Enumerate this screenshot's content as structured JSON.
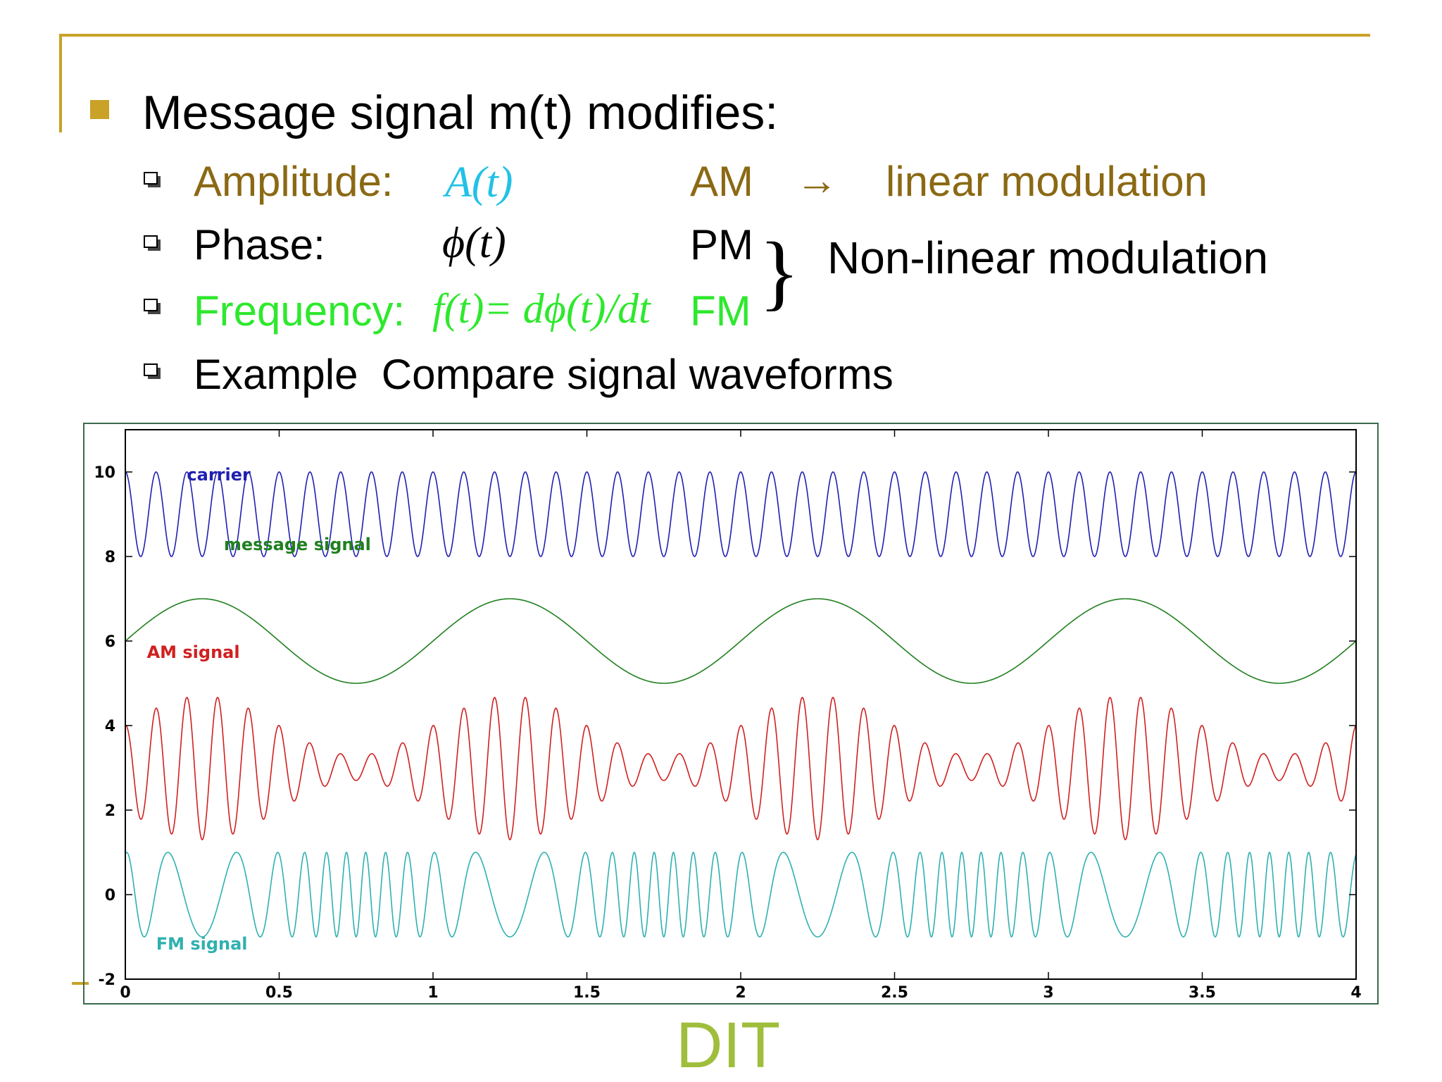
{
  "slide": {
    "heading": "Message signal m(t) modifies:",
    "bullets": [
      {
        "label": "Amplitude:",
        "math": "A(t)",
        "type": "AM",
        "arrow": "→",
        "note": "linear modulation"
      },
      {
        "label": "Phase:",
        "math": "ϕ(t)",
        "type": "PM"
      },
      {
        "label": "Frequency:",
        "math": "f(t)= dϕ(t)/dt",
        "type": "FM"
      },
      {
        "label": "Example  Compare signal waveforms"
      }
    ],
    "nonlinear_note": "Non-linear modulation",
    "footer": "DIT"
  },
  "colors": {
    "accent": "#c9a227",
    "amplitude_text": "#8b6914",
    "amplitude_math": "#22c1e6",
    "frequency_text": "#2ee82e",
    "footer": "#9fbe3c",
    "carrier": "#2020b0",
    "message": "#208020",
    "am": "#d02020",
    "fm": "#30b0b0"
  },
  "chart_data": {
    "type": "line",
    "xlim": [
      0,
      4
    ],
    "ylim": [
      -2,
      11
    ],
    "xticks": [
      "0",
      "0.5",
      "1",
      "1.5",
      "2",
      "2.5",
      "3",
      "3.5",
      "4"
    ],
    "yticks": [
      "-2",
      "0",
      "2",
      "4",
      "6",
      "8",
      "10"
    ],
    "series": [
      {
        "name": "carrier",
        "offset": 9,
        "amplitude": 1,
        "frequency": 10,
        "description": "9 + cos(2π·10·t)"
      },
      {
        "name": "message signal",
        "offset": 6,
        "amplitude": 1,
        "frequency": 1,
        "description": "6 + sin(2π·1·t)"
      },
      {
        "name": "AM signal",
        "offset": 3,
        "carrier_frequency": 10,
        "message_frequency": 1,
        "description": "3 + (1 + 0.7·sin(2π·t))·cos(2π·10·t)"
      },
      {
        "name": "FM signal",
        "offset": 0,
        "carrier_frequency": 10,
        "message_frequency": 1,
        "modulation_index": 6,
        "description": "cos(2π·10·t + 6·cos(2π·t))"
      }
    ]
  }
}
